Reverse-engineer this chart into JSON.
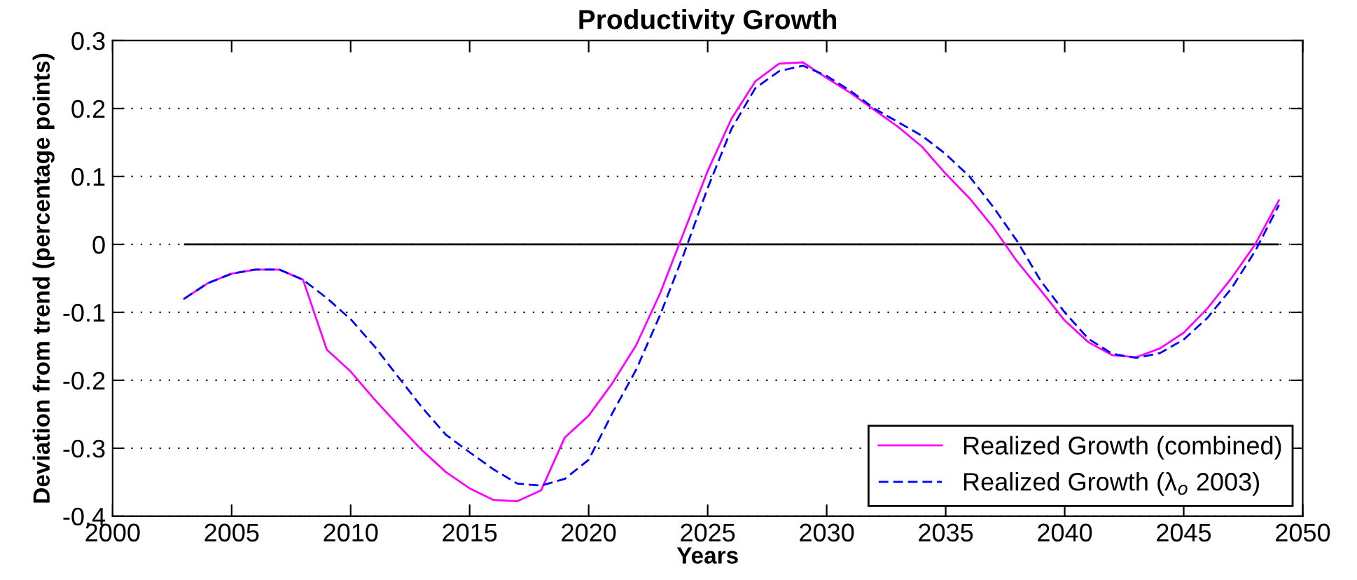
{
  "chart_data": {
    "type": "line",
    "title": "Productivity Growth",
    "xlabel": "Years",
    "ylabel": "Deviation from trend (percentage points)",
    "x": [
      2003,
      2004,
      2005,
      2006,
      2007,
      2008,
      2009,
      2010,
      2011,
      2012,
      2013,
      2014,
      2015,
      2016,
      2017,
      2018,
      2019,
      2020,
      2021,
      2022,
      2023,
      2024,
      2025,
      2026,
      2027,
      2028,
      2029,
      2030,
      2031,
      2032,
      2033,
      2034,
      2035,
      2036,
      2037,
      2038,
      2039,
      2040,
      2041,
      2042,
      2043,
      2044,
      2045,
      2046,
      2047,
      2048,
      2049
    ],
    "series": [
      {
        "name": "Realized Growth (combined)",
        "color": "#ff00ff",
        "line_style": "solid",
        "values": [
          -0.08,
          -0.057,
          -0.043,
          -0.037,
          -0.037,
          -0.052,
          -0.155,
          -0.187,
          -0.228,
          -0.266,
          -0.303,
          -0.335,
          -0.359,
          -0.376,
          -0.378,
          -0.362,
          -0.284,
          -0.252,
          -0.204,
          -0.148,
          -0.072,
          0.018,
          0.108,
          0.185,
          0.24,
          0.266,
          0.268,
          0.245,
          0.223,
          0.198,
          0.173,
          0.144,
          0.104,
          0.068,
          0.025,
          -0.025,
          -0.068,
          -0.112,
          -0.144,
          -0.163,
          -0.166,
          -0.153,
          -0.13,
          -0.094,
          -0.05,
          0.0,
          0.065
        ]
      },
      {
        "name": "Realized Growth (λ$_{o}$ 2003)",
        "color": "#0000ff",
        "line_style": "dashed",
        "values": [
          -0.08,
          -0.057,
          -0.043,
          -0.037,
          -0.037,
          -0.052,
          -0.079,
          -0.11,
          -0.15,
          -0.195,
          -0.24,
          -0.28,
          -0.306,
          -0.331,
          -0.352,
          -0.355,
          -0.345,
          -0.317,
          -0.248,
          -0.184,
          -0.104,
          -0.014,
          0.083,
          0.17,
          0.23,
          0.255,
          0.263,
          0.248,
          0.226,
          0.2,
          0.18,
          0.16,
          0.133,
          0.1,
          0.055,
          0.005,
          -0.054,
          -0.1,
          -0.139,
          -0.161,
          -0.167,
          -0.16,
          -0.14,
          -0.108,
          -0.065,
          -0.01,
          0.058
        ]
      }
    ],
    "xlim": [
      2000,
      2050
    ],
    "xticks": [
      2000,
      2005,
      2010,
      2015,
      2020,
      2025,
      2030,
      2035,
      2040,
      2045,
      2050
    ],
    "ylim": [
      -0.4,
      0.3
    ],
    "yticks": [
      -0.4,
      -0.3,
      -0.2,
      -0.1,
      0,
      0.1,
      0.2,
      0.3
    ],
    "ref_lines": [
      {
        "axis": "y",
        "value": 0,
        "color": "#000000",
        "line_style": "solid"
      }
    ],
    "grid": "y",
    "legend": "bottom right"
  }
}
